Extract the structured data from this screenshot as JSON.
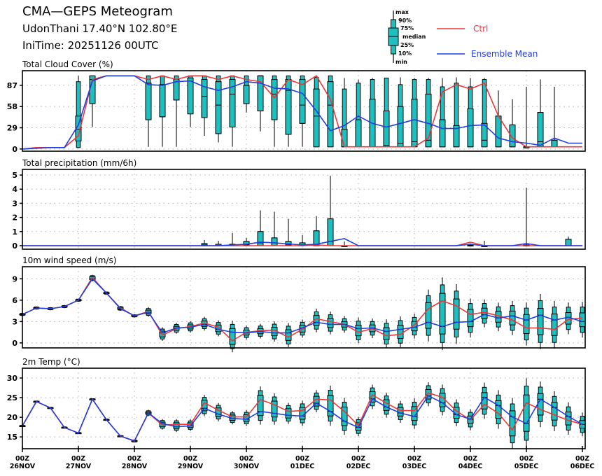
{
  "header": {
    "title": "CMA—GEPS Meteogram",
    "location": "UdonThani 17.40°N 102.80°E",
    "init_time": "IniTime: 20251126 00UTC"
  },
  "legend": {
    "box_labels": [
      "max",
      "90%",
      "75%",
      "median",
      "25%",
      "10%",
      "min"
    ],
    "ctrl_label": "Ctrl",
    "mean_label": "Ensemble Mean"
  },
  "colors": {
    "ctrl": "#e8383a",
    "mean": "#1f3ee0",
    "box_fill": "#1fbfbf",
    "box_edge": "#000000",
    "grid": "#b0b0b0"
  },
  "chart_data": [
    {
      "type": "box",
      "title": "Total Cloud Cover (%)",
      "ylim": [
        -3,
        107
      ],
      "yticks": [
        0,
        29,
        58,
        87
      ],
      "grid": true,
      "x_step_hours": 6,
      "ctrl": [
        0,
        2,
        2,
        2,
        18,
        95,
        100,
        100,
        100,
        95,
        100,
        95,
        100,
        100,
        95,
        100,
        95,
        92,
        70,
        95,
        88,
        100,
        68,
        3,
        3,
        3,
        3,
        3,
        3,
        15,
        78,
        88,
        82,
        90,
        45,
        15,
        3,
        3,
        3,
        3,
        3
      ],
      "mean": [
        0,
        1,
        2,
        2,
        33,
        93,
        100,
        100,
        100,
        88,
        87,
        92,
        93,
        85,
        80,
        85,
        92,
        90,
        83,
        82,
        76,
        52,
        25,
        32,
        45,
        35,
        30,
        35,
        40,
        35,
        28,
        28,
        32,
        33,
        15,
        10,
        8,
        5,
        15,
        8,
        8
      ],
      "boxes": [
        {
          "i": 4,
          "min": 2,
          "p10": 2,
          "p25": 11,
          "med": 27,
          "p75": 45,
          "p90": 92,
          "max": 100
        },
        {
          "i": 5,
          "min": 30,
          "p10": 62,
          "p25": 62,
          "med": 95,
          "p75": 100,
          "p90": 100,
          "max": 100
        },
        {
          "i": 9,
          "min": 3,
          "p10": 40,
          "p25": 40,
          "med": 90,
          "p75": 90,
          "p90": 100,
          "max": 100
        },
        {
          "i": 10,
          "min": 3,
          "p10": 44,
          "p25": 44,
          "med": 88,
          "p75": 88,
          "p90": 100,
          "max": 100
        },
        {
          "i": 11,
          "min": 3,
          "p10": 67,
          "p25": 67,
          "med": 95,
          "p75": 95,
          "p90": 100,
          "max": 100
        },
        {
          "i": 12,
          "min": 30,
          "p10": 48,
          "p25": 48,
          "med": 97,
          "p75": 97,
          "p90": 100,
          "max": 100
        },
        {
          "i": 13,
          "min": 18,
          "p10": 43,
          "p25": 43,
          "med": 72,
          "p75": 95,
          "p90": 100,
          "max": 100
        },
        {
          "i": 14,
          "min": 9,
          "p10": 21,
          "p25": 21,
          "med": 60,
          "p75": 92,
          "p90": 100,
          "max": 100
        },
        {
          "i": 15,
          "min": 3,
          "p10": 30,
          "p25": 30,
          "med": 75,
          "p75": 95,
          "p90": 100,
          "max": 100
        },
        {
          "i": 16,
          "min": 50,
          "p10": 62,
          "p25": 62,
          "med": 87,
          "p75": 87,
          "p90": 100,
          "max": 100
        },
        {
          "i": 17,
          "min": 24,
          "p10": 52,
          "p25": 52,
          "med": 100,
          "p75": 100,
          "p90": 100,
          "max": 100
        },
        {
          "i": 18,
          "min": 3,
          "p10": 40,
          "p25": 40,
          "med": 75,
          "p75": 95,
          "p90": 100,
          "max": 100
        },
        {
          "i": 19,
          "min": 3,
          "p10": 20,
          "p25": 20,
          "med": 80,
          "p75": 95,
          "p90": 100,
          "max": 100
        },
        {
          "i": 20,
          "min": 3,
          "p10": 35,
          "p25": 35,
          "med": 60,
          "p75": 95,
          "p90": 100,
          "max": 100
        },
        {
          "i": 21,
          "min": 3,
          "p10": 3,
          "p25": 3,
          "med": 45,
          "p75": 82,
          "p90": 98,
          "max": 100
        },
        {
          "i": 22,
          "min": 3,
          "p10": 3,
          "p25": 3,
          "med": 60,
          "p75": 92,
          "p90": 100,
          "max": 100
        },
        {
          "i": 23,
          "min": 3,
          "p10": 3,
          "p25": 3,
          "med": 3,
          "p75": 27,
          "p90": 82,
          "max": 97
        },
        {
          "i": 24,
          "min": 3,
          "p10": 3,
          "p25": 3,
          "med": 3,
          "p75": 40,
          "p90": 90,
          "max": 95
        },
        {
          "i": 25,
          "min": 3,
          "p10": 3,
          "p25": 3,
          "med": 3,
          "p75": 68,
          "p90": 95,
          "max": 97
        },
        {
          "i": 26,
          "min": 3,
          "p10": 3,
          "p25": 3,
          "med": 5,
          "p75": 52,
          "p90": 97,
          "max": 97
        },
        {
          "i": 27,
          "min": 3,
          "p10": 3,
          "p25": 3,
          "med": 8,
          "p75": 58,
          "p90": 88,
          "max": 98
        },
        {
          "i": 28,
          "min": 3,
          "p10": 3,
          "p25": 3,
          "med": 10,
          "p75": 68,
          "p90": 95,
          "max": 97
        },
        {
          "i": 29,
          "min": 3,
          "p10": 3,
          "p25": 3,
          "med": 12,
          "p75": 75,
          "p90": 95,
          "max": 97
        },
        {
          "i": 30,
          "min": 3,
          "p10": 3,
          "p25": 3,
          "med": 3,
          "p75": 40,
          "p90": 85,
          "max": 97
        },
        {
          "i": 31,
          "min": 3,
          "p10": 3,
          "p25": 3,
          "med": 3,
          "p75": 32,
          "p90": 90,
          "max": 98
        },
        {
          "i": 32,
          "min": 3,
          "p10": 3,
          "p25": 3,
          "med": 3,
          "p75": 55,
          "p90": 85,
          "max": 97
        },
        {
          "i": 33,
          "min": 3,
          "p10": 3,
          "p25": 3,
          "med": 12,
          "p75": 35,
          "p90": 95,
          "max": 97
        },
        {
          "i": 34,
          "min": 3,
          "p10": 3,
          "p25": 3,
          "med": 3,
          "p75": 45,
          "p90": 45,
          "max": 80
        },
        {
          "i": 35,
          "min": 3,
          "p10": 3,
          "p25": 3,
          "med": 3,
          "p75": 33,
          "p90": 33,
          "max": 68
        },
        {
          "i": 36,
          "min": 3,
          "p10": 3,
          "p25": 3,
          "med": 3,
          "p75": 3,
          "p90": 3,
          "max": 85
        },
        {
          "i": 37,
          "min": 3,
          "p10": 3,
          "p25": 3,
          "med": 10,
          "p75": 50,
          "p90": 50,
          "max": 95
        },
        {
          "i": 38,
          "min": 3,
          "p10": 3,
          "p25": 3,
          "med": 3,
          "p75": 12,
          "p90": 12,
          "max": 85
        }
      ]
    },
    {
      "type": "box",
      "title": "Total precipitation (mm/6h)",
      "ylim": [
        -0.25,
        5.4
      ],
      "yticks": [
        0,
        1,
        2,
        3,
        4,
        5
      ],
      "grid": true,
      "x_step_hours": 6,
      "ctrl": [
        0,
        0,
        0,
        0,
        0,
        0,
        0,
        0,
        0,
        0,
        0,
        0,
        0,
        0,
        0,
        0,
        0,
        0,
        0,
        0,
        0,
        0.05,
        0,
        0,
        0,
        0,
        0,
        0,
        0,
        0,
        0,
        0,
        0.25,
        0,
        0,
        0,
        0,
        0,
        0,
        0,
        0
      ],
      "mean": [
        0,
        0,
        0,
        0,
        0,
        0,
        0,
        0,
        0,
        0,
        0,
        0,
        0,
        0,
        0,
        0.05,
        0.1,
        0.25,
        0.2,
        0.12,
        0.05,
        0.1,
        0.3,
        0.5,
        0,
        0,
        0,
        0,
        0,
        0,
        0,
        0,
        0.1,
        0,
        0,
        0,
        0.15,
        0,
        0,
        0,
        0
      ],
      "boxes": [
        {
          "i": 13,
          "min": 0,
          "p10": 0,
          "p25": 0,
          "med": 0.05,
          "p75": 0.15,
          "p90": 0.15,
          "max": 0.4
        },
        {
          "i": 14,
          "min": 0,
          "p10": 0,
          "p25": 0,
          "med": 0.02,
          "p75": 0.1,
          "p90": 0.1,
          "max": 0.35
        },
        {
          "i": 15,
          "min": 0,
          "p10": 0,
          "p25": 0,
          "med": 0.05,
          "p75": 0.1,
          "p90": 0.1,
          "max": 0.9
        },
        {
          "i": 16,
          "min": 0,
          "p10": 0,
          "p25": 0.05,
          "med": 0.1,
          "p75": 0.3,
          "p90": 0.3,
          "max": 0.55
        },
        {
          "i": 17,
          "min": 0,
          "p10": 0,
          "p25": 0,
          "med": 0.2,
          "p75": 1.0,
          "p90": 1.0,
          "max": 2.5
        },
        {
          "i": 18,
          "min": 0,
          "p10": 0,
          "p25": 0,
          "med": 0.2,
          "p75": 0.55,
          "p90": 0.55,
          "max": 2.4
        },
        {
          "i": 19,
          "min": 0,
          "p10": 0,
          "p25": 0,
          "med": 0.05,
          "p75": 0.3,
          "p90": 0.3,
          "max": 1.9
        },
        {
          "i": 20,
          "min": 0,
          "p10": 0,
          "p25": 0,
          "med": 0.05,
          "p75": 0.2,
          "p90": 0.2,
          "max": 0.75
        },
        {
          "i": 21,
          "min": 0,
          "p10": 0,
          "p25": 0,
          "med": 0.1,
          "p75": 1.05,
          "p90": 1.05,
          "max": 2.1
        },
        {
          "i": 22,
          "min": 0,
          "p10": 0,
          "p25": 0,
          "med": 0.3,
          "p75": 1.9,
          "p90": 1.9,
          "max": 4.95
        },
        {
          "i": 23,
          "min": 0,
          "p10": 0,
          "p25": 0,
          "med": 0,
          "p75": 0,
          "p90": 0,
          "max": 0.3
        },
        {
          "i": 32,
          "min": 0,
          "p10": 0,
          "p25": 0,
          "med": 0,
          "p75": 0.05,
          "p90": 0.05,
          "max": 0.05
        },
        {
          "i": 33,
          "min": 0,
          "p10": 0,
          "p25": 0,
          "med": 0,
          "p75": 0,
          "p90": 0,
          "max": 0.35
        },
        {
          "i": 36,
          "min": 0,
          "p10": 0,
          "p25": 0,
          "med": 0,
          "p75": 0.05,
          "p90": 0.05,
          "max": 4.1
        },
        {
          "i": 39,
          "min": 0,
          "p10": 0,
          "p25": 0,
          "med": 0,
          "p75": 0.45,
          "p90": 0.45,
          "max": 0.65
        }
      ]
    },
    {
      "type": "box",
      "title": "10m wind speed (m/s)",
      "ylim": [
        -0.7,
        10.7
      ],
      "yticks": [
        0,
        3,
        6,
        9
      ],
      "grid": true,
      "x_step_hours": 6,
      "ctrl": [
        4.0,
        4.9,
        4.8,
        5.1,
        6.0,
        9.2,
        7.0,
        4.9,
        3.8,
        4.4,
        1.1,
        2.0,
        2.3,
        2.8,
        2.2,
        0.3,
        1.5,
        1.7,
        1.8,
        0.8,
        1.9,
        3.4,
        3.0,
        2.6,
        1.5,
        2.0,
        1.0,
        1.2,
        2.5,
        4.8,
        5.9,
        5.2,
        4.0,
        4.3,
        3.8,
        3.2,
        2.1,
        2.1,
        1.9,
        3.3,
        3.5
      ],
      "mean": [
        4.0,
        4.9,
        4.8,
        5.1,
        6.0,
        9.0,
        7.0,
        4.8,
        3.8,
        4.3,
        1.4,
        2.1,
        2.2,
        2.6,
        1.9,
        1.5,
        1.4,
        1.6,
        1.4,
        1.4,
        2.1,
        2.9,
        2.6,
        2.6,
        2.0,
        2.1,
        1.6,
        1.9,
        2.2,
        2.9,
        2.3,
        2.9,
        3.0,
        4.0,
        3.5,
        3.8,
        3.2,
        3.9,
        3.2,
        3.6,
        3.0
      ]
    },
    {
      "type": "box",
      "title": "2m Temp (°C)",
      "ylim": [
        12,
        32.5
      ],
      "yticks": [
        15,
        20,
        25,
        30
      ],
      "grid": true,
      "x_step_hours": 6,
      "ctrl": [
        17.8,
        24.0,
        22.4,
        17.4,
        16.0,
        24.6,
        19.4,
        15.2,
        13.9,
        21.1,
        18.0,
        18.2,
        18.2,
        23.7,
        21.8,
        20.1,
        20.1,
        24.5,
        23.2,
        21.5,
        21.7,
        24.6,
        24.4,
        21.5,
        17.9,
        25.7,
        23.6,
        21.7,
        21.7,
        26.2,
        25.1,
        21.6,
        19.3,
        23.3,
        21.0,
        16.8,
        23.7,
        22.0,
        20.6,
        19.2,
        18.2
      ],
      "mean": [
        17.8,
        24.0,
        22.4,
        17.4,
        16.0,
        24.6,
        19.4,
        15.2,
        14.0,
        21.1,
        18.4,
        17.6,
        17.8,
        22.3,
        20.8,
        19.7,
        19.5,
        21.5,
        21.0,
        20.5,
        20.3,
        23.6,
        21.5,
        19.0,
        17.4,
        24.7,
        22.6,
        21.1,
        20.2,
        25.5,
        23.7,
        20.7,
        19.5,
        25.1,
        23.0,
        20.1,
        18.4,
        24.6,
        22.5,
        20.2,
        18.2
      ]
    }
  ],
  "xaxis": {
    "ticks": [
      {
        "hour": "00Z",
        "date": "26NOV"
      },
      {
        "hour": "00Z",
        "date": "27NOV"
      },
      {
        "hour": "00Z",
        "date": "28NOV"
      },
      {
        "hour": "00Z",
        "date": "29NOV"
      },
      {
        "hour": "00Z",
        "date": "30NOV"
      },
      {
        "hour": "00Z",
        "date": "01DEC"
      },
      {
        "hour": "00Z",
        "date": "02DEC"
      },
      {
        "hour": "00Z",
        "date": "03DEC"
      },
      {
        "hour": "00Z",
        "date": "04DEC"
      },
      {
        "hour": "00Z",
        "date": "05DEC"
      },
      {
        "hour": "00Z",
        "date": "06DEC"
      }
    ]
  }
}
